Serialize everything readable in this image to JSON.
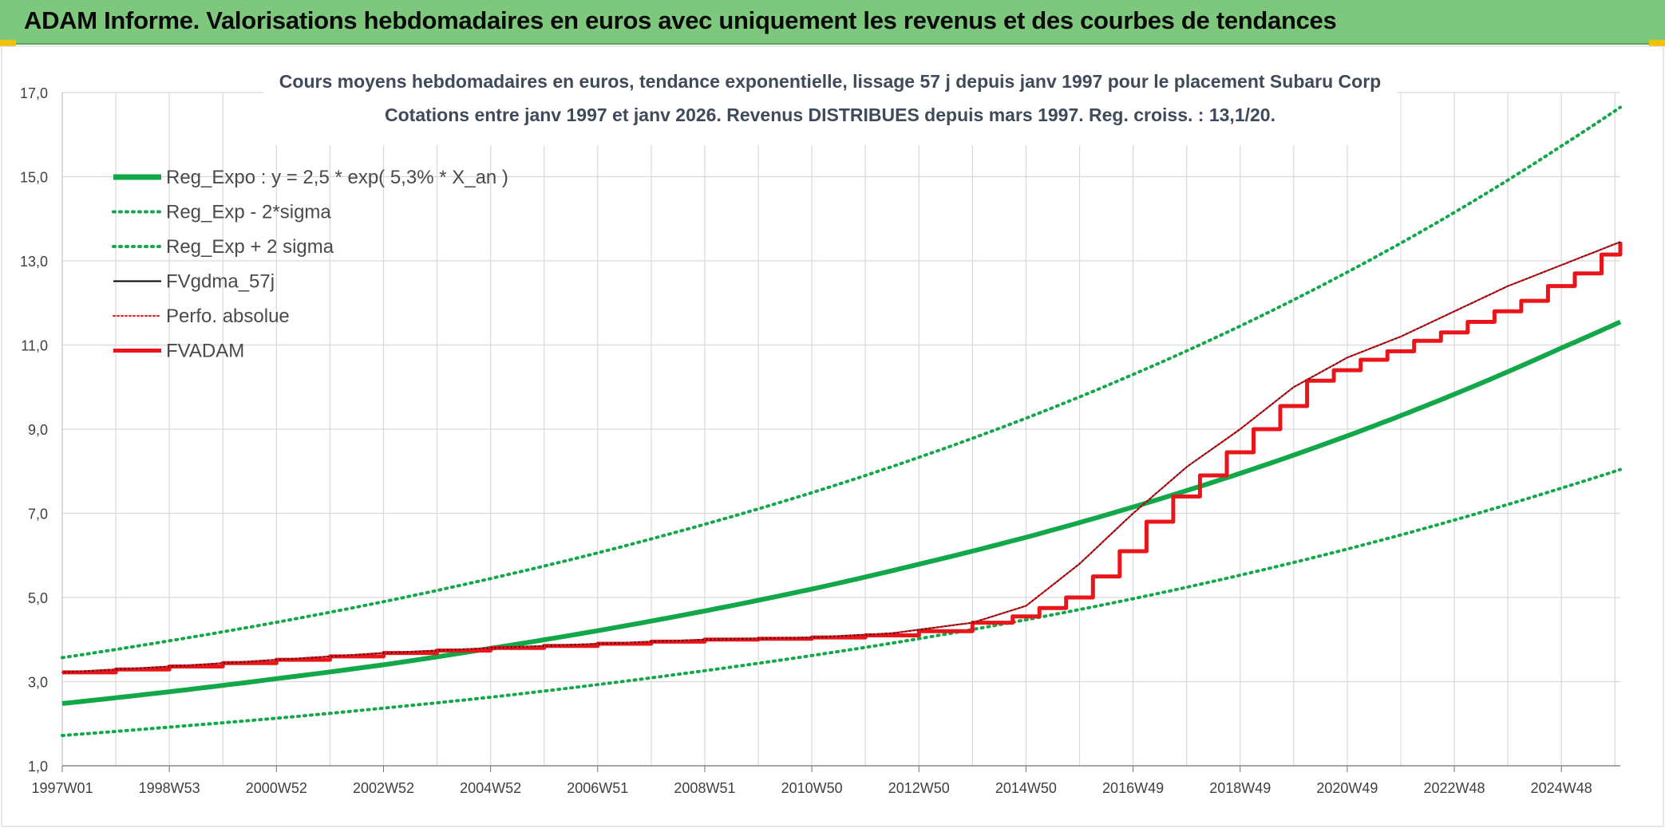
{
  "banner": {
    "title": "ADAM Informe. Valorisations hebdomadaires en euros avec uniquement les revenus et des courbes de tendances"
  },
  "colors": {
    "banner_bg": "#7dc87d",
    "regression_green": "#12a84a",
    "fv_black": "#000000",
    "adam_red": "#e8161b",
    "grid": "#d9d9d9",
    "accent_corner": "#f2c200"
  },
  "chart_data": {
    "type": "line",
    "title": "Cours moyens hebdomadaires en euros, tendance exponentielle, lissage 57 j depuis janv 1997 pour le placement Subaru Corp",
    "subtitle": "Cotations entre janv 1997 et janv 2026. Revenus DISTRIBUES depuis mars 1997. Reg. croiss. : 13,1/20.",
    "xlabel": "",
    "ylabel": "",
    "x_range": [
      1997.0,
      2026.1
    ],
    "ylim": [
      1.0,
      17.0
    ],
    "yticks": [
      "1,0",
      "3,0",
      "5,0",
      "7,0",
      "9,0",
      "11,0",
      "13,0",
      "15,0",
      "17,0"
    ],
    "xticks": [
      {
        "label": "1997W01",
        "x": 1997.0
      },
      {
        "label": "1998W53",
        "x": 1999.0
      },
      {
        "label": "2000W52",
        "x": 2001.0
      },
      {
        "label": "2002W52",
        "x": 2003.0
      },
      {
        "label": "2004W52",
        "x": 2005.0
      },
      {
        "label": "2006W51",
        "x": 2007.0
      },
      {
        "label": "2008W51",
        "x": 2009.0
      },
      {
        "label": "2010W50",
        "x": 2011.0
      },
      {
        "label": "2012W50",
        "x": 2013.0
      },
      {
        "label": "2014W50",
        "x": 2015.0
      },
      {
        "label": "2016W49",
        "x": 2017.0
      },
      {
        "label": "2018W49",
        "x": 2019.0
      },
      {
        "label": "2020W49",
        "x": 2021.0
      },
      {
        "label": "2022W48",
        "x": 2023.0
      },
      {
        "label": "2024W48",
        "x": 2025.0
      }
    ],
    "grid": true,
    "legend_position": "top-left",
    "series": [
      {
        "name": "Reg_Expo : y = 2,5 * exp( 5,3% *  X_an )",
        "style": "solid-thick",
        "color": "#12a84a",
        "x": [
          1997.0,
          1999.0,
          2001.0,
          2003.0,
          2005.0,
          2007.0,
          2009.0,
          2011.0,
          2013.0,
          2015.0,
          2017.0,
          2019.0,
          2021.0,
          2023.0,
          2025.0,
          2026.1
        ],
        "y": [
          2.48,
          2.76,
          3.07,
          3.4,
          3.79,
          4.21,
          4.68,
          5.2,
          5.79,
          6.43,
          7.15,
          7.95,
          8.84,
          9.83,
          10.93,
          11.55
        ]
      },
      {
        "name": "Reg_Exp - 2*sigma",
        "style": "dotted",
        "color": "#12a84a",
        "x": [
          1997.0,
          1999.0,
          2001.0,
          2003.0,
          2005.0,
          2007.0,
          2009.0,
          2011.0,
          2013.0,
          2015.0,
          2017.0,
          2019.0,
          2021.0,
          2023.0,
          2025.0,
          2026.1
        ],
        "y": [
          1.72,
          1.92,
          2.13,
          2.37,
          2.63,
          2.93,
          3.26,
          3.62,
          4.02,
          4.47,
          4.97,
          5.53,
          6.15,
          6.84,
          7.6,
          8.04
        ]
      },
      {
        "name": "Reg_Exp + 2 sigma",
        "style": "dotted",
        "color": "#12a84a",
        "x": [
          1997.0,
          1999.0,
          2001.0,
          2003.0,
          2005.0,
          2007.0,
          2009.0,
          2011.0,
          2013.0,
          2015.0,
          2017.0,
          2019.0,
          2021.0,
          2023.0,
          2025.0,
          2026.1
        ],
        "y": [
          3.57,
          3.97,
          4.41,
          4.9,
          5.45,
          6.06,
          6.74,
          7.49,
          8.33,
          9.26,
          10.3,
          11.45,
          12.73,
          14.15,
          15.73,
          16.65
        ]
      },
      {
        "name": "FVgdma_57j",
        "style": "solid-thin",
        "color": "#000000",
        "x": [
          1997.0,
          1999.0,
          2001.0,
          2003.0,
          2005.0,
          2007.0,
          2009.0,
          2011.0,
          2012.5,
          2014.0,
          2015.0,
          2016.0,
          2017.0,
          2018.0,
          2019.0,
          2020.0,
          2021.0,
          2022.0,
          2023.0,
          2024.0,
          2025.0,
          2026.1
        ],
        "y": [
          3.22,
          3.36,
          3.52,
          3.68,
          3.8,
          3.9,
          4.0,
          4.05,
          4.15,
          4.4,
          4.8,
          5.8,
          7.0,
          8.1,
          9.0,
          10.0,
          10.7,
          11.2,
          11.8,
          12.4,
          12.9,
          13.45
        ]
      },
      {
        "name": "Perfo. absolue",
        "style": "dotted",
        "color": "#e8161b",
        "x": [
          1997.0,
          1999.0,
          2001.0,
          2003.0,
          2005.0,
          2007.0,
          2009.0,
          2011.0,
          2012.5,
          2014.0,
          2015.0,
          2016.0,
          2017.0,
          2018.0,
          2019.0,
          2020.0,
          2021.0,
          2022.0,
          2023.0,
          2024.0,
          2025.0,
          2026.1
        ],
        "y": [
          3.22,
          3.36,
          3.52,
          3.68,
          3.8,
          3.9,
          4.0,
          4.05,
          4.15,
          4.4,
          4.8,
          5.8,
          7.0,
          8.1,
          9.0,
          10.0,
          10.7,
          11.2,
          11.8,
          12.4,
          12.9,
          13.45
        ]
      },
      {
        "name": "FVADAM",
        "style": "solid-thick-step",
        "color": "#e8161b",
        "x": [
          1997.0,
          1998.0,
          1999.0,
          2000.0,
          2001.0,
          2002.0,
          2003.0,
          2004.0,
          2005.0,
          2006.0,
          2007.0,
          2008.0,
          2009.0,
          2010.0,
          2011.0,
          2012.0,
          2013.0,
          2014.0,
          2014.75,
          2015.25,
          2015.75,
          2016.25,
          2016.75,
          2017.25,
          2017.75,
          2018.25,
          2018.75,
          2019.25,
          2019.75,
          2020.25,
          2020.75,
          2021.25,
          2021.75,
          2022.25,
          2022.75,
          2023.25,
          2023.75,
          2024.25,
          2024.75,
          2025.25,
          2025.75,
          2026.1
        ],
        "y": [
          3.22,
          3.29,
          3.36,
          3.44,
          3.52,
          3.6,
          3.68,
          3.74,
          3.8,
          3.85,
          3.9,
          3.95,
          4.0,
          4.02,
          4.05,
          4.1,
          4.2,
          4.4,
          4.55,
          4.75,
          5.0,
          5.5,
          6.1,
          6.8,
          7.4,
          7.9,
          8.45,
          9.0,
          9.55,
          10.15,
          10.4,
          10.65,
          10.85,
          11.1,
          11.3,
          11.55,
          11.8,
          12.05,
          12.4,
          12.7,
          13.15,
          13.45
        ]
      }
    ]
  }
}
